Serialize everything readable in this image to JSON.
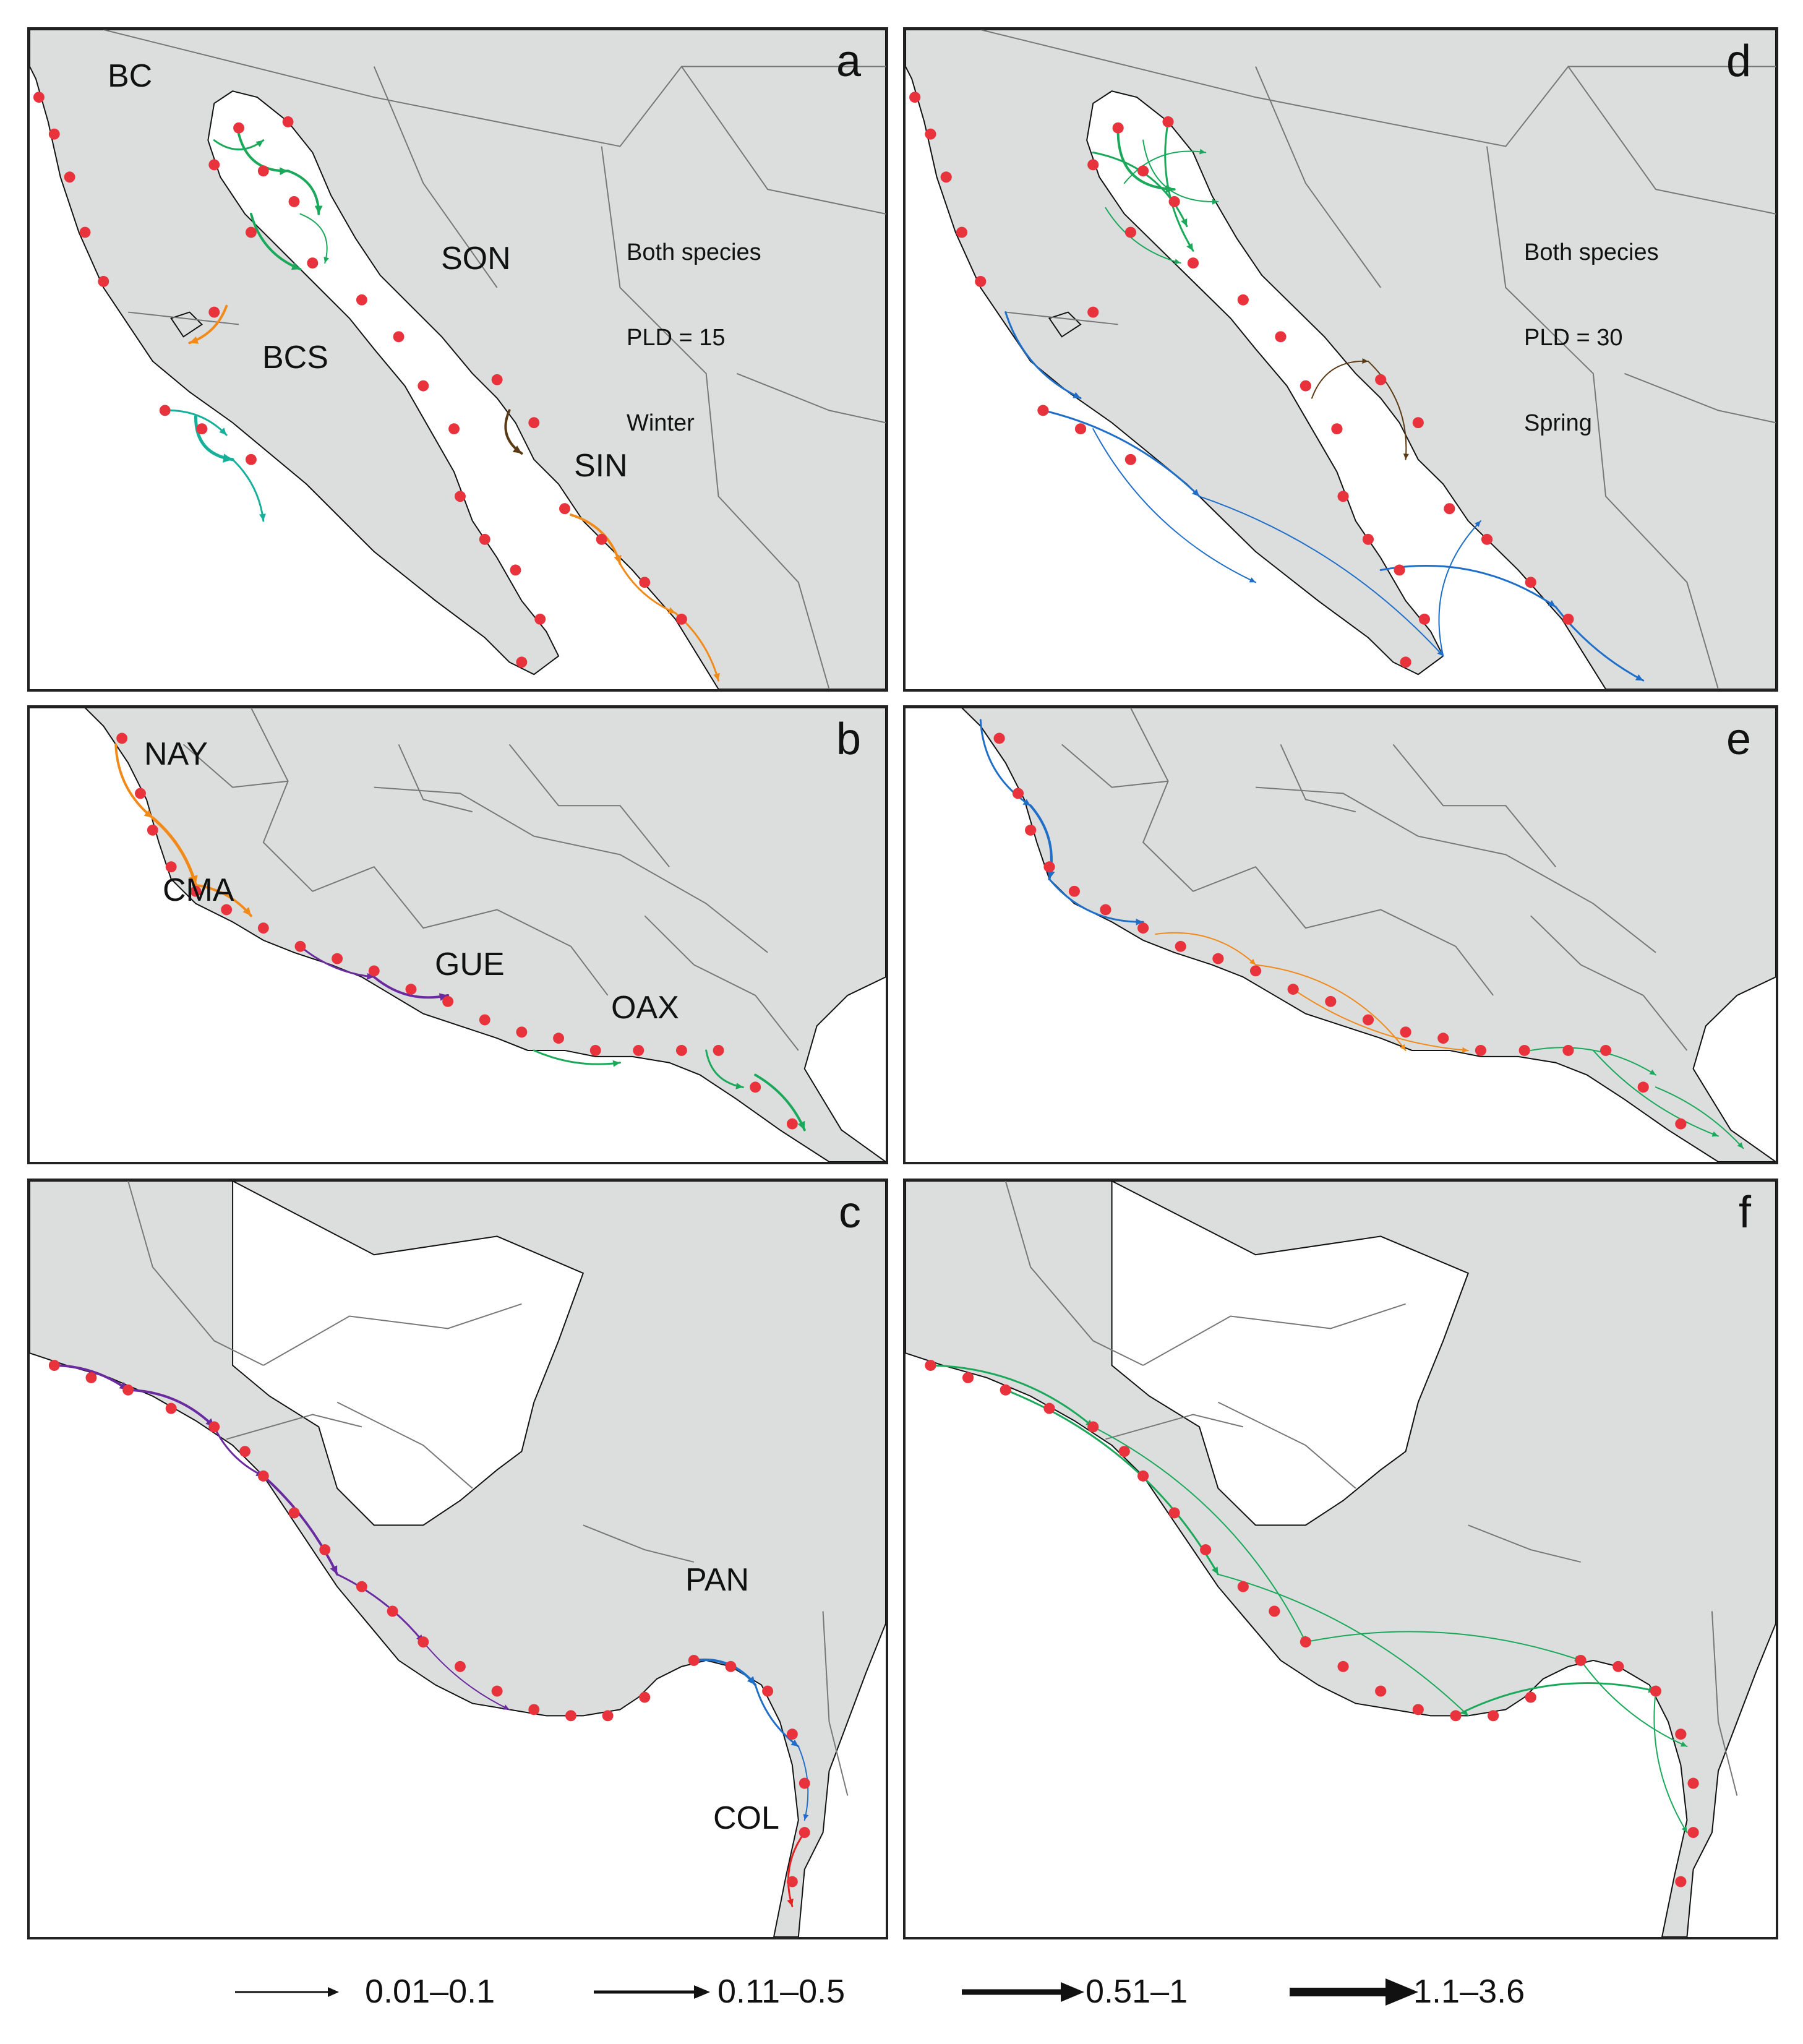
{
  "colors": {
    "land": "#dcdddd",
    "sea": "#ffffff",
    "border": "#777777",
    "coast": "#111111",
    "site": "#e8333c",
    "green": "#1aa85a",
    "teal": "#16b09a",
    "orange": "#f28a1a",
    "brown": "#5a3a14",
    "purple": "#6a2aa0",
    "blue": "#1f6fc8",
    "red": "#e32222"
  },
  "panels": [
    {
      "letter": "a",
      "region": "gulf",
      "labels": [
        "BC",
        "BCS",
        "SON",
        "SIN"
      ],
      "note": [
        "Both species",
        "PLD = 15",
        "Winter"
      ]
    },
    {
      "letter": "b",
      "region": "mexico",
      "labels": [
        "NAY",
        "CMA",
        "GUE",
        "OAX"
      ]
    },
    {
      "letter": "c",
      "region": "central",
      "labels": [
        "PAN",
        "COL"
      ]
    },
    {
      "letter": "d",
      "region": "gulf",
      "note": [
        "Both species",
        "PLD = 30",
        "Spring"
      ]
    },
    {
      "letter": "e",
      "region": "mexico"
    },
    {
      "letter": "f",
      "region": "central"
    }
  ],
  "legend": {
    "items": [
      {
        "label": "0.01–0.1",
        "weight": "thin"
      },
      {
        "label": "0.11–0.5",
        "weight": "medium"
      },
      {
        "label": "0.51–1",
        "weight": "thick"
      },
      {
        "label": "1.1–3.6",
        "weight": "heavy"
      }
    ]
  }
}
